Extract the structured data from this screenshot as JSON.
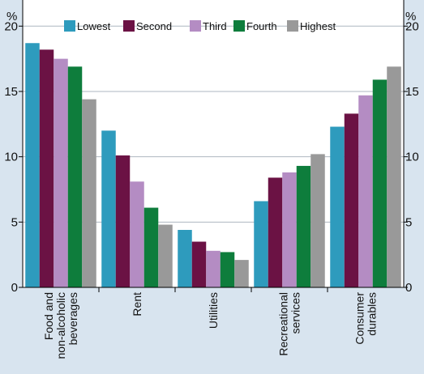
{
  "chart_data": {
    "type": "bar",
    "unit_left": "%",
    "unit_right": "%",
    "categories": [
      [
        "Food and",
        "non-alcoholic",
        "beverages"
      ],
      [
        "Rent"
      ],
      [
        "Utilities"
      ],
      [
        "Recreational",
        "services"
      ],
      [
        "Consumer",
        "durables"
      ]
    ],
    "series": [
      {
        "name": "Lowest",
        "color": "#2e9bbd",
        "values": [
          18.7,
          12.0,
          4.4,
          6.6,
          12.3
        ]
      },
      {
        "name": "Second",
        "color": "#6b1244",
        "values": [
          18.2,
          10.1,
          3.5,
          8.4,
          13.3
        ]
      },
      {
        "name": "Third",
        "color": "#b48cc3",
        "values": [
          17.5,
          8.1,
          2.8,
          8.8,
          14.7
        ]
      },
      {
        "name": "Fourth",
        "color": "#0e7d3c",
        "values": [
          16.9,
          6.1,
          2.7,
          9.3,
          15.9
        ]
      },
      {
        "name": "Highest",
        "color": "#999999",
        "values": [
          14.4,
          4.8,
          2.1,
          10.2,
          16.9
        ]
      }
    ],
    "ylim": [
      0,
      22
    ],
    "yticks": [
      0,
      5,
      10,
      15,
      20
    ],
    "grid": true,
    "legend_position": "top"
  }
}
